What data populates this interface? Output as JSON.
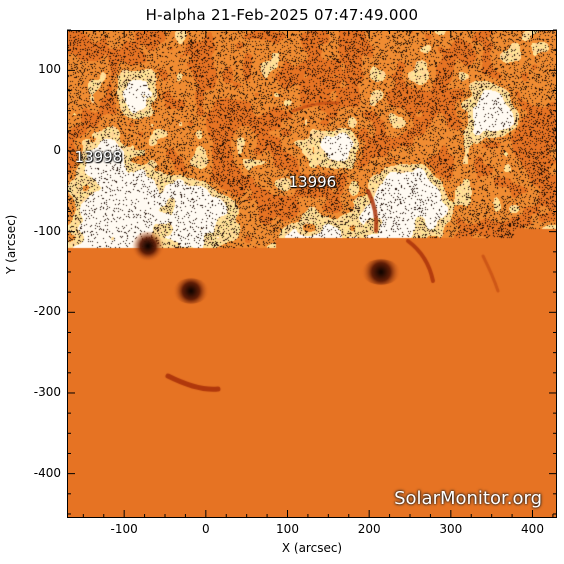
{
  "title": "H-alpha 21-Feb-2025 07:47:49.000",
  "axes": {
    "x_label": "X (arcsec)",
    "y_label": "Y (arcsec)",
    "x_range": [
      -170,
      430
    ],
    "y_range": [
      -455,
      150
    ],
    "x_ticks": [
      -100,
      0,
      100,
      200,
      300,
      400
    ],
    "y_ticks": [
      100,
      0,
      -100,
      -200,
      -300,
      -400
    ]
  },
  "regions": [
    {
      "label": "13998",
      "x": -162,
      "y": -8
    },
    {
      "label": "13996",
      "x": 100,
      "y": -38
    }
  ],
  "watermark": "SolarMonitor.org",
  "colors": {
    "background": "#ffffff",
    "chromosphere": "#f08a2e",
    "plage": "#fff8ee",
    "dark": "#1a0800"
  }
}
